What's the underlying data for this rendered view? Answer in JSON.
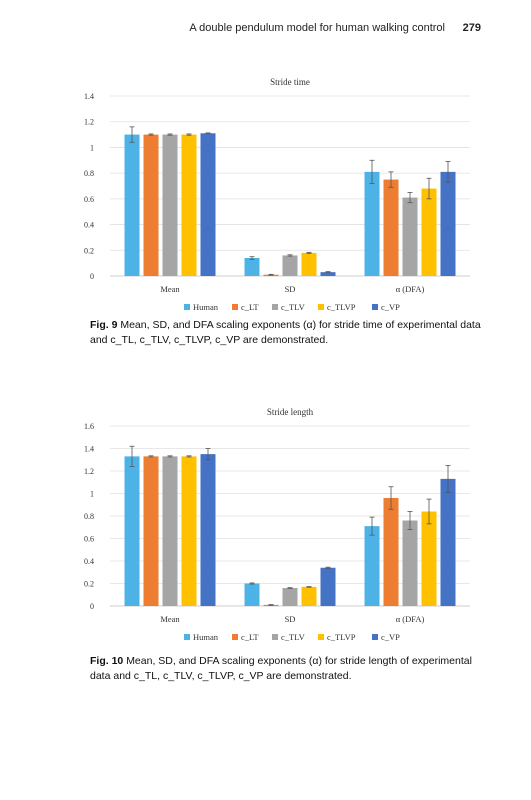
{
  "header": {
    "running_title": "A double pendulum model for human walking control",
    "page_number": "279"
  },
  "captions": [
    {
      "label": "Fig. 9",
      "text": "Mean, SD, and DFA scaling exponents (α) for stride time of experimental data and c_TL, c_TLV, c_TLVP, c_VP are demonstrated."
    },
    {
      "label": "Fig. 10",
      "text": "Mean, SD, and DFA scaling exponents (α) for stride length of experimental data and c_TL, c_TLV, c_TLVP, c_VP are demonstrated."
    }
  ],
  "chart_data": [
    {
      "type": "bar",
      "title": "Stride time",
      "categories": [
        "Mean",
        "SD",
        "α (DFA)"
      ],
      "ylim": [
        0,
        1.4
      ],
      "yticks": [
        "0",
        "0.2",
        "0.4",
        "0.6",
        "0.8",
        "1",
        "1.2",
        "1.4"
      ],
      "grid": true,
      "legend_position": "bottom",
      "series": [
        {
          "name": "Human",
          "color": "#4db3e6",
          "values": [
            1.1,
            0.14,
            0.81
          ],
          "errors": [
            0.06,
            0.01,
            0.09
          ]
        },
        {
          "name": "c_LT",
          "color": "#ed7d31",
          "values": [
            1.1,
            0.01,
            0.75
          ],
          "errors": [
            0.005,
            0.003,
            0.06
          ]
        },
        {
          "name": "c_TLV",
          "color": "#a5a5a5",
          "values": [
            1.1,
            0.16,
            0.61
          ],
          "errors": [
            0.005,
            0.005,
            0.04
          ]
        },
        {
          "name": "c_TLVP",
          "color": "#ffc000",
          "values": [
            1.1,
            0.18,
            0.68
          ],
          "errors": [
            0.005,
            0.004,
            0.08
          ]
        },
        {
          "name": "c_VP",
          "color": "#4472c4",
          "values": [
            1.11,
            0.03,
            0.81
          ],
          "errors": [
            0.003,
            0.004,
            0.08
          ]
        }
      ]
    },
    {
      "type": "bar",
      "title": "Stride length",
      "categories": [
        "Mean",
        "SD",
        "α (DFA)"
      ],
      "ylim": [
        0,
        1.6
      ],
      "yticks": [
        "0",
        "0.2",
        "0.4",
        "0.6",
        "0.8",
        "1",
        "1.2",
        "1.4",
        "1.6"
      ],
      "grid": true,
      "legend_position": "bottom",
      "series": [
        {
          "name": "Human",
          "color": "#4db3e6",
          "values": [
            1.33,
            0.2,
            0.71
          ],
          "errors": [
            0.09,
            0.005,
            0.08
          ]
        },
        {
          "name": "c_LT",
          "color": "#ed7d31",
          "values": [
            1.33,
            0.01,
            0.96
          ],
          "errors": [
            0.005,
            0.003,
            0.1
          ]
        },
        {
          "name": "c_TLV",
          "color": "#a5a5a5",
          "values": [
            1.33,
            0.16,
            0.76
          ],
          "errors": [
            0.005,
            0.003,
            0.08
          ]
        },
        {
          "name": "c_TLVP",
          "color": "#ffc000",
          "values": [
            1.33,
            0.17,
            0.84
          ],
          "errors": [
            0.005,
            0.003,
            0.11
          ]
        },
        {
          "name": "c_VP",
          "color": "#4472c4",
          "values": [
            1.35,
            0.34,
            1.13
          ],
          "errors": [
            0.05,
            0.005,
            0.12
          ]
        }
      ]
    }
  ]
}
